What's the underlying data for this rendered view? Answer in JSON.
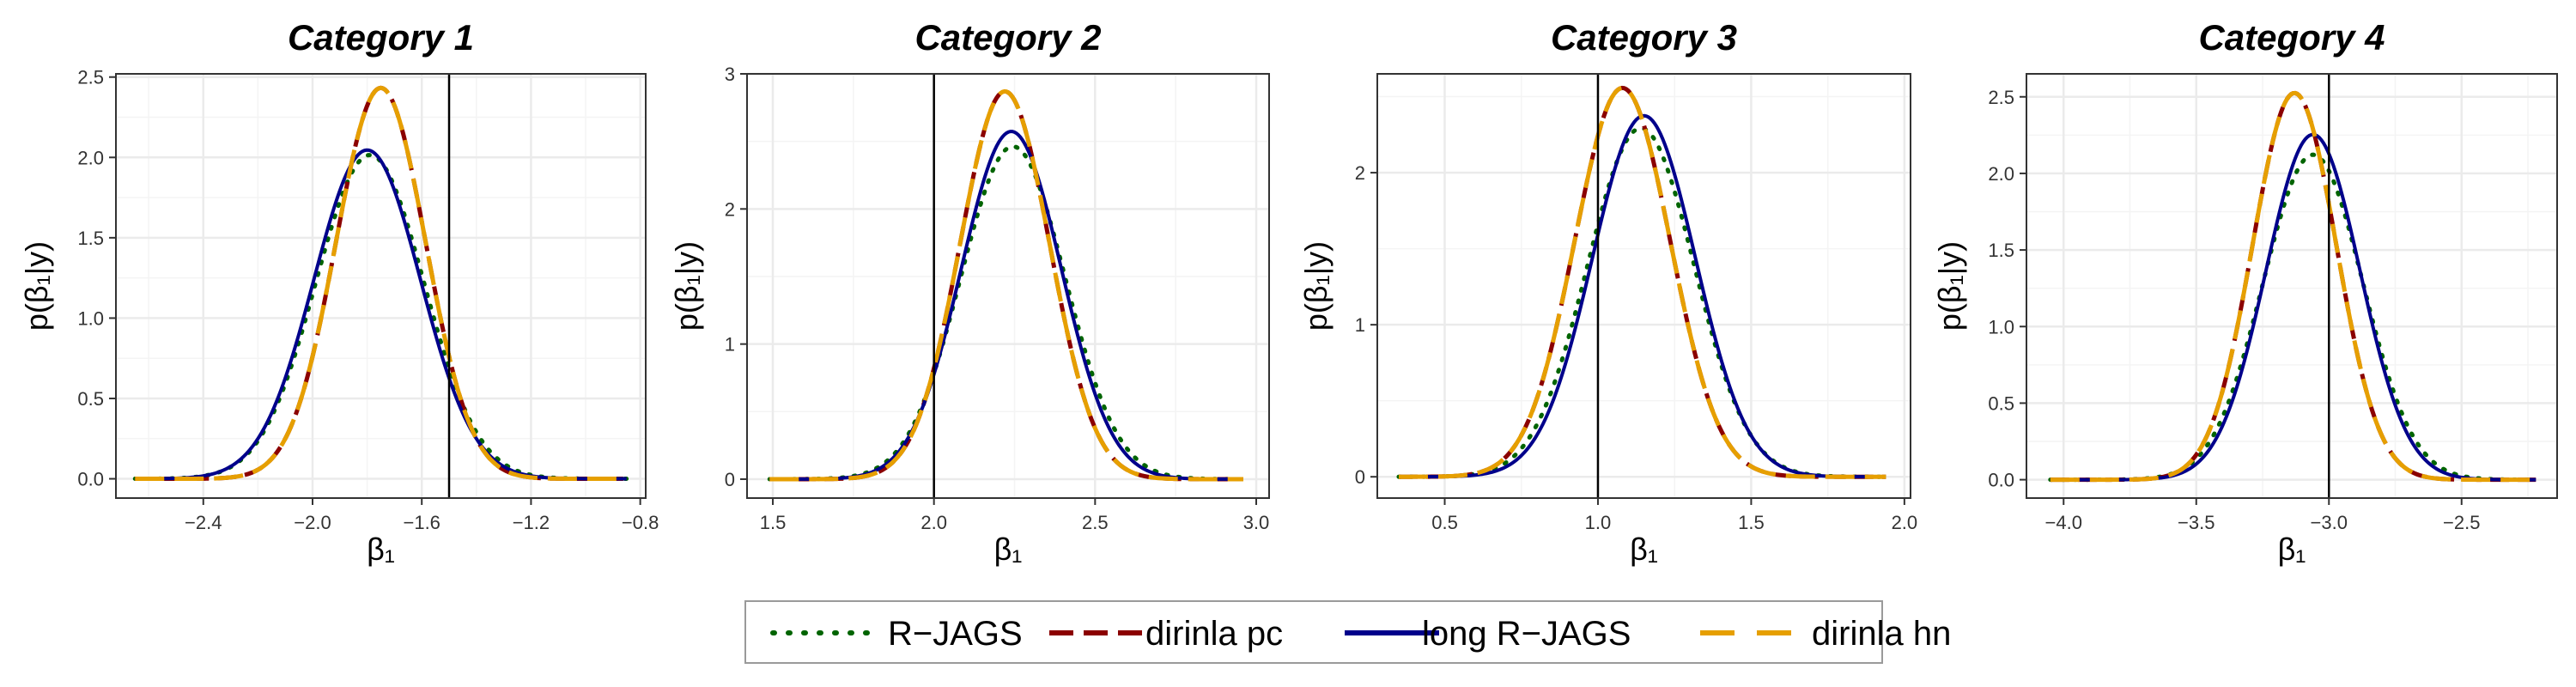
{
  "chart_data": [
    {
      "type": "line",
      "title": "Category 1",
      "xlabel": "β₁",
      "ylabel": "p(β₁|y)",
      "xlim": [
        -2.72,
        -0.78
      ],
      "ylim": [
        -0.12,
        2.52
      ],
      "xticks": [
        -2.4,
        -2.0,
        -1.6,
        -1.2,
        -0.8
      ],
      "xtick_labels": [
        "−2.4",
        "−2.0",
        "−1.6",
        "−1.2",
        "−0.8"
      ],
      "yticks": [
        0.0,
        0.5,
        1.0,
        1.5,
        2.0,
        2.5
      ],
      "ytick_labels": [
        "0.0",
        "0.5",
        "1.0",
        "1.5",
        "2.0",
        "2.5"
      ],
      "vline": -1.5,
      "x_range": [
        -2.65,
        -0.85
      ],
      "series": [
        {
          "name": "R−JAGS",
          "mean": -1.79,
          "sd": 0.198
        },
        {
          "name": "dirinla pc",
          "mean": -1.75,
          "sd": 0.164
        },
        {
          "name": "long R−JAGS",
          "mean": -1.8,
          "sd": 0.195
        },
        {
          "name": "dirinla hn",
          "mean": -1.75,
          "sd": 0.164
        }
      ]
    },
    {
      "type": "line",
      "title": "Category 2",
      "xlabel": "β₁",
      "ylabel": "p(β₁|y)",
      "xlim": [
        1.42,
        3.04
      ],
      "ylim": [
        -0.14,
        3.0
      ],
      "xticks": [
        1.5,
        2.0,
        2.5,
        3.0
      ],
      "xtick_labels": [
        "1.5",
        "2.0",
        "2.5",
        "3.0"
      ],
      "yticks": [
        0,
        1,
        2,
        3
      ],
      "ytick_labels": [
        "0",
        "1",
        "2",
        "3"
      ],
      "vline": 2.0,
      "x_range": [
        1.49,
        2.96
      ],
      "series": [
        {
          "name": "R−JAGS",
          "mean": 2.245,
          "sd": 0.162
        },
        {
          "name": "dirinla pc",
          "mean": 2.22,
          "sd": 0.139
        },
        {
          "name": "long R−JAGS",
          "mean": 2.24,
          "sd": 0.155
        },
        {
          "name": "dirinla hn",
          "mean": 2.22,
          "sd": 0.139
        }
      ]
    },
    {
      "type": "line",
      "title": "Category 3",
      "xlabel": "β₁",
      "ylabel": "p(β₁|y)",
      "xlim": [
        0.28,
        2.02
      ],
      "ylim": [
        -0.14,
        2.65
      ],
      "xticks": [
        0.5,
        1.0,
        1.5,
        2.0
      ],
      "xtick_labels": [
        "0.5",
        "1.0",
        "1.5",
        "2.0"
      ],
      "yticks": [
        0,
        1,
        2
      ],
      "ytick_labels": [
        "0",
        "1",
        "2"
      ],
      "vline": 1.0,
      "x_range": [
        0.35,
        1.94
      ],
      "series": [
        {
          "name": "R−JAGS",
          "mean": 1.14,
          "sd": 0.174
        },
        {
          "name": "dirinla pc",
          "mean": 1.08,
          "sd": 0.156
        },
        {
          "name": "long R−JAGS",
          "mean": 1.15,
          "sd": 0.168
        },
        {
          "name": "dirinla hn",
          "mean": 1.08,
          "sd": 0.156
        }
      ]
    },
    {
      "type": "line",
      "title": "Category 4",
      "xlabel": "β₁",
      "ylabel": "p(β₁|y)",
      "xlim": [
        -4.14,
        -2.14
      ],
      "ylim": [
        -0.12,
        2.65
      ],
      "xticks": [
        -4.0,
        -3.5,
        -3.0,
        -2.5
      ],
      "xtick_labels": [
        "−4.0",
        "−3.5",
        "−3.0",
        "−2.5"
      ],
      "yticks": [
        0.0,
        0.5,
        1.0,
        1.5,
        2.0,
        2.5
      ],
      "ytick_labels": [
        "0.0",
        "0.5",
        "1.0",
        "1.5",
        "2.0",
        "2.5"
      ],
      "vline": -3.0,
      "x_range": [
        -4.05,
        -2.22
      ],
      "series": [
        {
          "name": "R−JAGS",
          "mean": -3.06,
          "sd": 0.188
        },
        {
          "name": "dirinla pc",
          "mean": -3.13,
          "sd": 0.158
        },
        {
          "name": "long R−JAGS",
          "mean": -3.06,
          "sd": 0.177
        },
        {
          "name": "dirinla hn",
          "mean": -3.13,
          "sd": 0.158
        }
      ]
    }
  ],
  "legend": {
    "placement": "bottom",
    "items": [
      {
        "label": "R−JAGS",
        "color": "#006400",
        "dash": "dotted"
      },
      {
        "label": "dirinla pc",
        "color": "#8b0000",
        "dash": "dashed"
      },
      {
        "label": "long R−JAGS",
        "color": "#00008b",
        "dash": "solid"
      },
      {
        "label": "dirinla hn",
        "color": "#e69f00",
        "dash": "longdash"
      }
    ]
  },
  "colors": {
    "grid_major": "#ebebeb",
    "grid_minor": "#f4f4f4",
    "panel_border": "#333333",
    "vline": "#000000"
  }
}
